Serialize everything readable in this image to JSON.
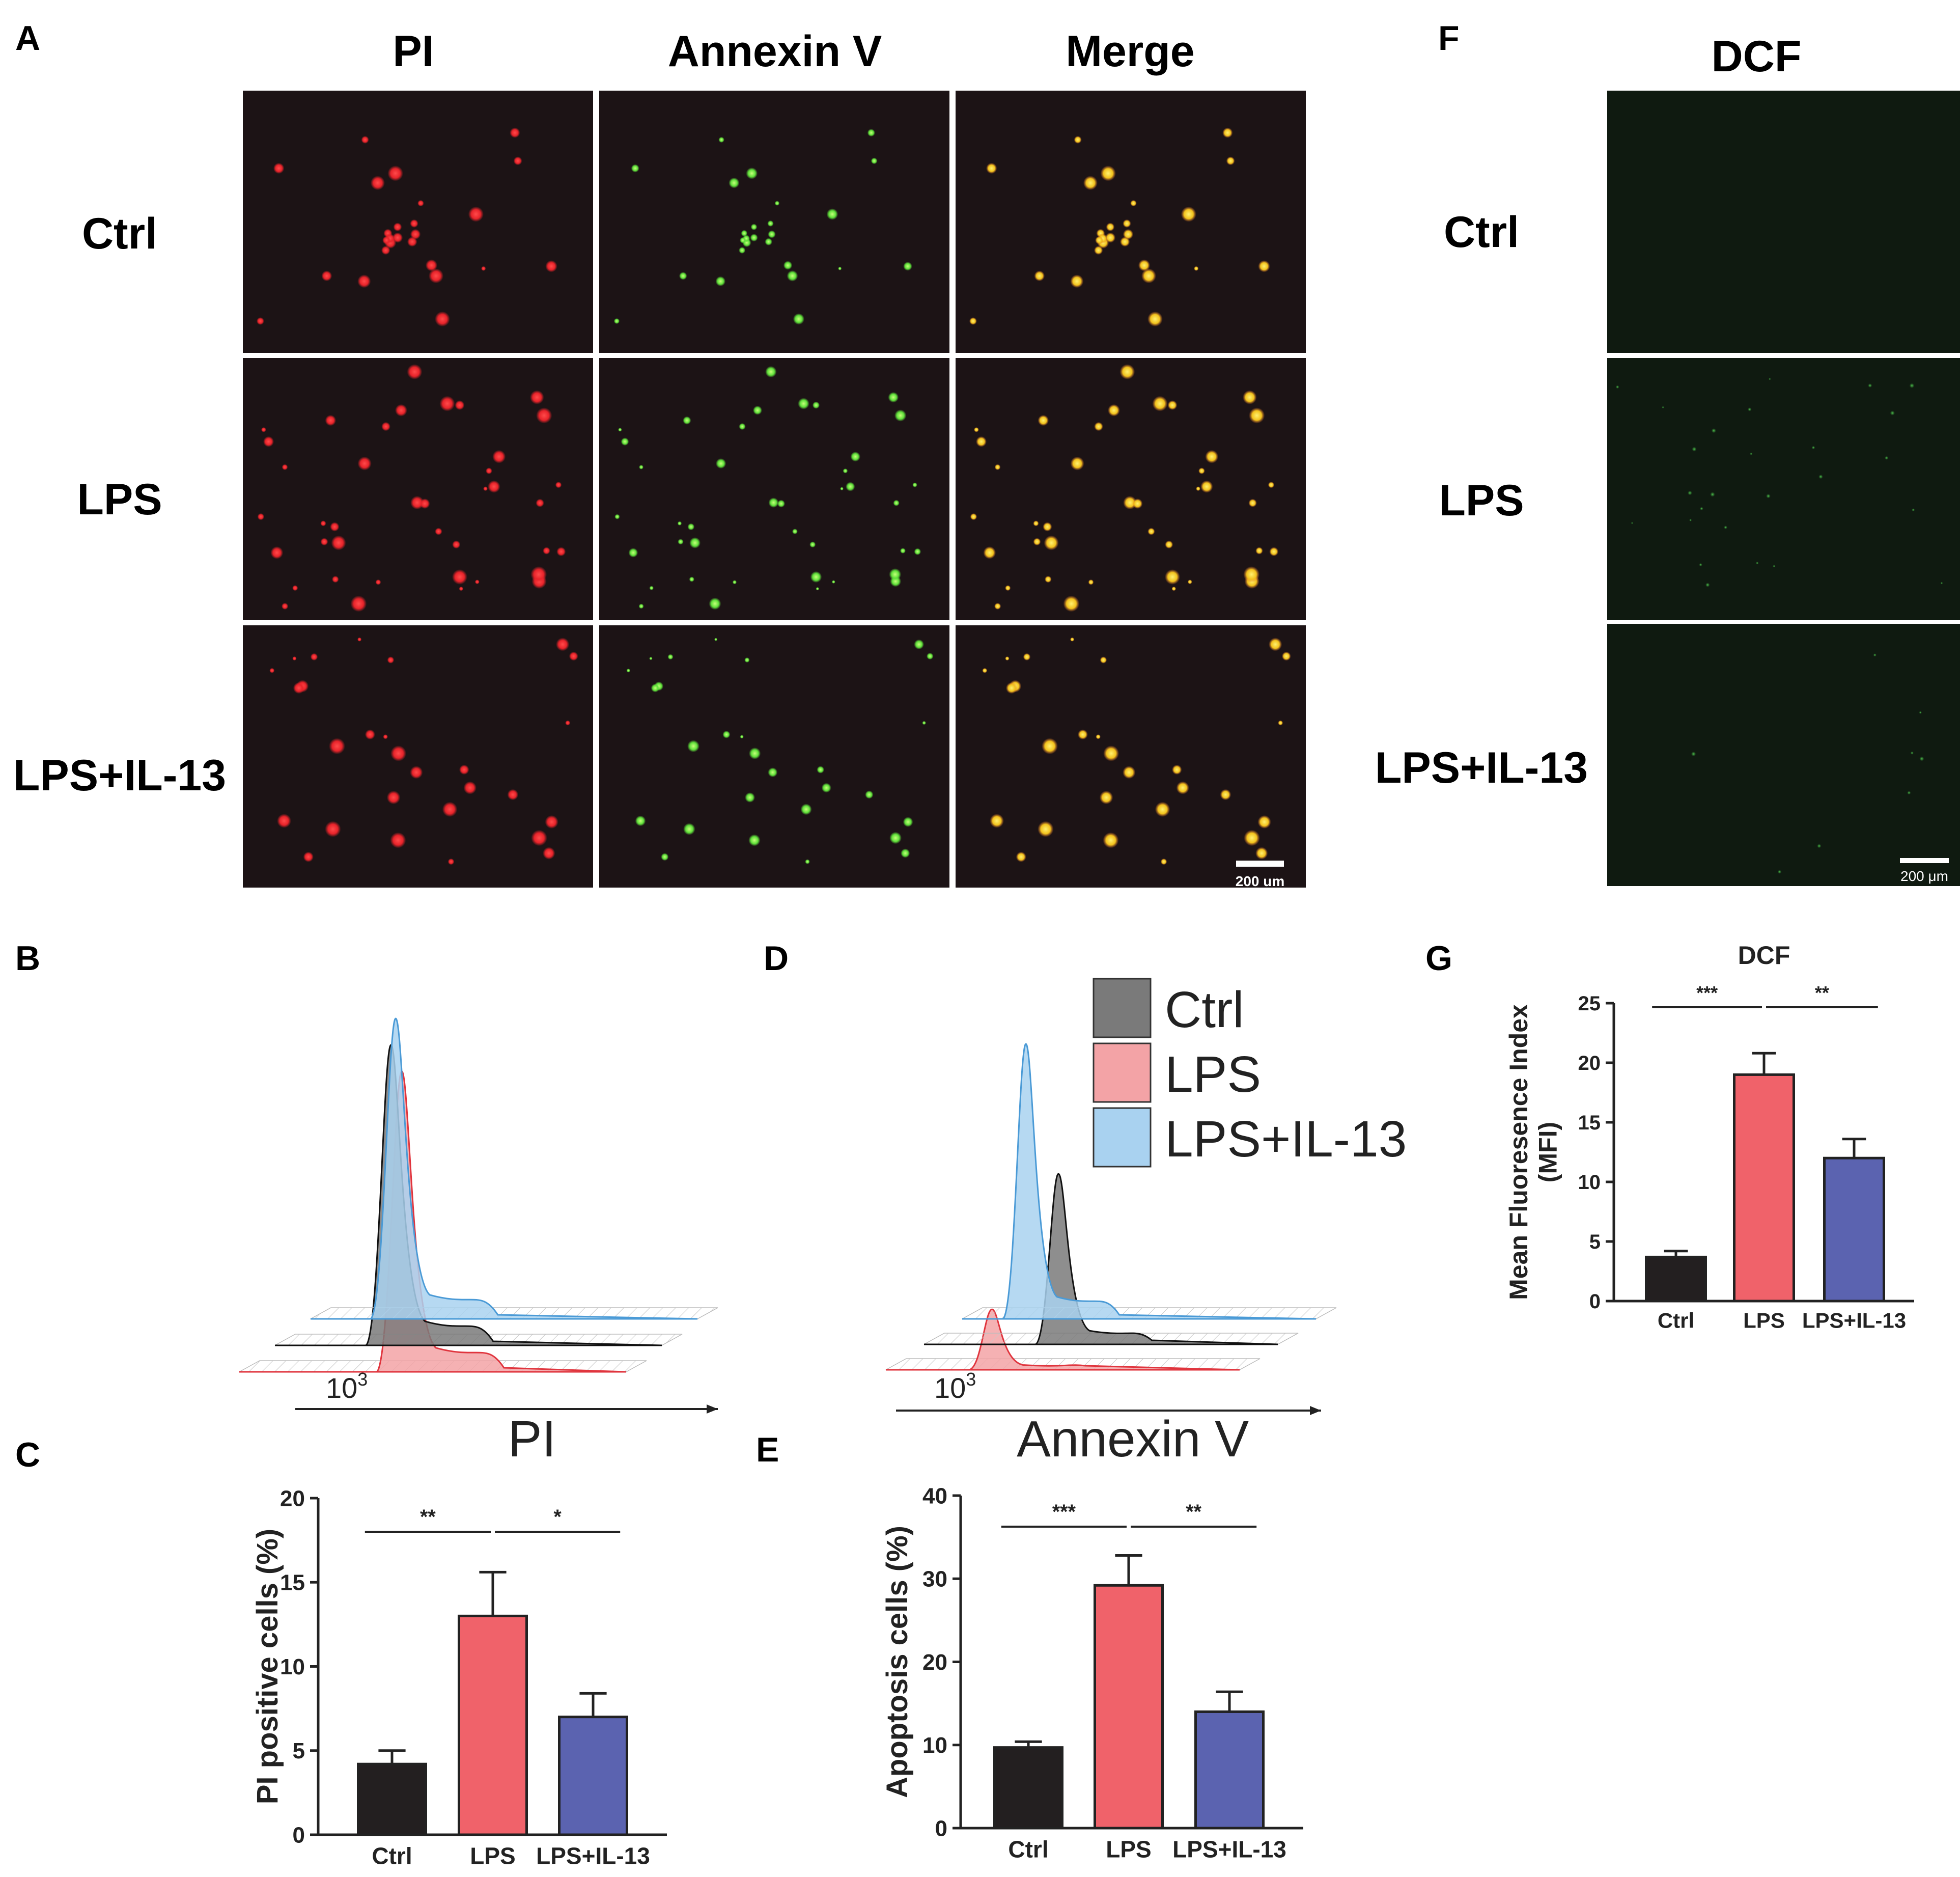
{
  "colors": {
    "ctrl": "#231f20",
    "lps": "#f0626a",
    "il13": "#5b63b0",
    "panel_bg": "#1c1315",
    "dcf_bg": "#0f1a10",
    "pi_red": "#e8232a",
    "annexin_green": "#5fe03a",
    "merge_yellow": "#f2d21c",
    "dcf_green": "#3aa33a",
    "hist_ctrl": "#7a7a7a",
    "hist_lps": "#f3a3a6",
    "hist_il13": "#a9d2f0"
  },
  "panel_a": {
    "letter": "A",
    "columns": [
      "PI",
      "Annexin V",
      "Merge"
    ],
    "rows": [
      "Ctrl",
      "LPS",
      "LPS+IL-13"
    ],
    "scale_bar": "200 um"
  },
  "panel_f": {
    "letter": "F",
    "column": "DCF",
    "rows": [
      "Ctrl",
      "LPS",
      "LPS+IL-13"
    ],
    "scale_bar": "200 μm"
  },
  "chart_data": [
    {
      "panel": "B",
      "type": "histogram",
      "xlabel": "PI",
      "tick_label": "10",
      "tick_exp": "3",
      "series": [
        {
          "name": "Ctrl",
          "peak_position": 0.3
        },
        {
          "name": "LPS",
          "peak_position": 0.42
        },
        {
          "name": "LPS+IL-13",
          "peak_position": 0.22
        }
      ]
    },
    {
      "panel": "D",
      "type": "histogram",
      "xlabel": "Annexin V",
      "tick_label": "10",
      "tick_exp": "3",
      "legend": [
        "Ctrl",
        "LPS",
        "LPS+IL-13"
      ],
      "series": [
        {
          "name": "Ctrl",
          "peak_position": 0.38
        },
        {
          "name": "LPS",
          "peak_position": 0.3
        },
        {
          "name": "LPS+IL-13",
          "peak_position": 0.18
        }
      ]
    },
    {
      "panel": "C",
      "type": "bar",
      "title": "",
      "categories": [
        "Ctrl",
        "LPS",
        "LPS+IL-13"
      ],
      "values": [
        4.2,
        13.0,
        7.0
      ],
      "errors": [
        0.8,
        2.6,
        1.4
      ],
      "ylabel": "PI positive cells (%)",
      "ylim": [
        0,
        20
      ],
      "yticks": [
        0,
        5,
        10,
        15,
        20
      ],
      "significance": [
        {
          "from": 0,
          "to": 1,
          "label": "**"
        },
        {
          "from": 1,
          "to": 2,
          "label": "*"
        }
      ]
    },
    {
      "panel": "E",
      "type": "bar",
      "title": "",
      "categories": [
        "Ctrl",
        "LPS",
        "LPS+IL-13"
      ],
      "values": [
        9.7,
        29.2,
        14.0
      ],
      "errors": [
        0.7,
        3.6,
        2.4
      ],
      "ylabel": "Apoptosis cells (%)",
      "ylim": [
        0,
        40
      ],
      "yticks": [
        0,
        10,
        20,
        30,
        40
      ],
      "significance": [
        {
          "from": 0,
          "to": 1,
          "label": "***"
        },
        {
          "from": 1,
          "to": 2,
          "label": "**"
        }
      ]
    },
    {
      "panel": "G",
      "type": "bar",
      "title": "DCF",
      "categories": [
        "Ctrl",
        "LPS",
        "LPS+IL-13"
      ],
      "values": [
        3.7,
        19.0,
        12.0
      ],
      "errors": [
        0.5,
        1.8,
        1.6
      ],
      "ylabel": [
        "Mean Fluoresence Index",
        "(MFI)"
      ],
      "ylim": [
        0,
        25
      ],
      "yticks": [
        0,
        5,
        10,
        15,
        20,
        25
      ],
      "significance": [
        {
          "from": 0,
          "to": 1,
          "label": "***"
        },
        {
          "from": 1,
          "to": 2,
          "label": "**"
        }
      ]
    }
  ]
}
